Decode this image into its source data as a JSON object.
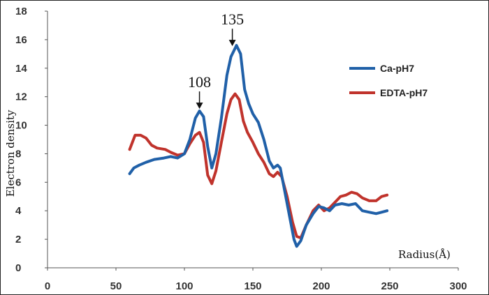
{
  "chart_data": {
    "type": "line",
    "title": "",
    "xlabel": "Radius(Å)",
    "ylabel": "Electron density",
    "xlim": [
      0,
      300
    ],
    "ylim": [
      0,
      18
    ],
    "xticks": [
      0,
      50,
      100,
      150,
      200,
      250,
      300
    ],
    "yticks": [
      0,
      2,
      4,
      6,
      8,
      10,
      12,
      14,
      16,
      18
    ],
    "grid": false,
    "legend": "right",
    "series": [
      {
        "name": "Ca-pH7",
        "color": "#2060a8",
        "points": [
          [
            60,
            6.6
          ],
          [
            63,
            7.0
          ],
          [
            67,
            7.2
          ],
          [
            72,
            7.4
          ],
          [
            78,
            7.6
          ],
          [
            85,
            7.7
          ],
          [
            90,
            7.8
          ],
          [
            95,
            7.7
          ],
          [
            100,
            8.0
          ],
          [
            104,
            9.0
          ],
          [
            108,
            10.5
          ],
          [
            111,
            11.0
          ],
          [
            114,
            10.6
          ],
          [
            117,
            8.5
          ],
          [
            120,
            7.0
          ],
          [
            123,
            8.0
          ],
          [
            127,
            10.5
          ],
          [
            131,
            13.5
          ],
          [
            134,
            14.8
          ],
          [
            136,
            15.2
          ],
          [
            138,
            15.6
          ],
          [
            141,
            15.0
          ],
          [
            144,
            12.5
          ],
          [
            147,
            11.5
          ],
          [
            150,
            10.8
          ],
          [
            154,
            10.2
          ],
          [
            158,
            9.0
          ],
          [
            162,
            7.5
          ],
          [
            165,
            7.0
          ],
          [
            168,
            7.2
          ],
          [
            170,
            7.0
          ],
          [
            173,
            5.5
          ],
          [
            177,
            3.5
          ],
          [
            180,
            2.0
          ],
          [
            182,
            1.5
          ],
          [
            185,
            1.9
          ],
          [
            189,
            3.0
          ],
          [
            194,
            3.8
          ],
          [
            198,
            4.3
          ],
          [
            202,
            4.2
          ],
          [
            206,
            4.0
          ],
          [
            210,
            4.4
          ],
          [
            215,
            4.5
          ],
          [
            220,
            4.4
          ],
          [
            225,
            4.5
          ],
          [
            230,
            4.0
          ],
          [
            235,
            3.9
          ],
          [
            240,
            3.8
          ],
          [
            244,
            3.9
          ],
          [
            248,
            4.0
          ]
        ]
      },
      {
        "name": "EDTA-pH7",
        "color": "#c0332c",
        "points": [
          [
            60,
            8.3
          ],
          [
            64,
            9.3
          ],
          [
            68,
            9.3
          ],
          [
            72,
            9.1
          ],
          [
            76,
            8.6
          ],
          [
            80,
            8.4
          ],
          [
            86,
            8.3
          ],
          [
            90,
            8.1
          ],
          [
            95,
            7.9
          ],
          [
            100,
            8.0
          ],
          [
            104,
            8.7
          ],
          [
            108,
            9.3
          ],
          [
            111,
            9.5
          ],
          [
            114,
            8.8
          ],
          [
            117,
            6.5
          ],
          [
            120,
            5.9
          ],
          [
            123,
            6.8
          ],
          [
            127,
            8.8
          ],
          [
            131,
            10.8
          ],
          [
            134,
            11.8
          ],
          [
            137,
            12.2
          ],
          [
            140,
            11.8
          ],
          [
            143,
            10.3
          ],
          [
            146,
            9.5
          ],
          [
            150,
            8.8
          ],
          [
            154,
            8.0
          ],
          [
            158,
            7.4
          ],
          [
            162,
            6.6
          ],
          [
            165,
            6.4
          ],
          [
            168,
            6.7
          ],
          [
            171,
            6.4
          ],
          [
            175,
            5.0
          ],
          [
            179,
            3.2
          ],
          [
            182,
            2.2
          ],
          [
            185,
            2.1
          ],
          [
            189,
            3.0
          ],
          [
            194,
            4.0
          ],
          [
            198,
            4.4
          ],
          [
            202,
            4.0
          ],
          [
            206,
            4.2
          ],
          [
            210,
            4.6
          ],
          [
            214,
            5.0
          ],
          [
            218,
            5.1
          ],
          [
            222,
            5.3
          ],
          [
            226,
            5.2
          ],
          [
            230,
            4.9
          ],
          [
            235,
            4.7
          ],
          [
            240,
            4.7
          ],
          [
            244,
            5.0
          ],
          [
            248,
            5.1
          ]
        ]
      }
    ],
    "annotations": [
      {
        "label": "108",
        "x": 111,
        "y": 11.0
      },
      {
        "label": "135",
        "x": 135,
        "y": 15.4
      }
    ]
  }
}
